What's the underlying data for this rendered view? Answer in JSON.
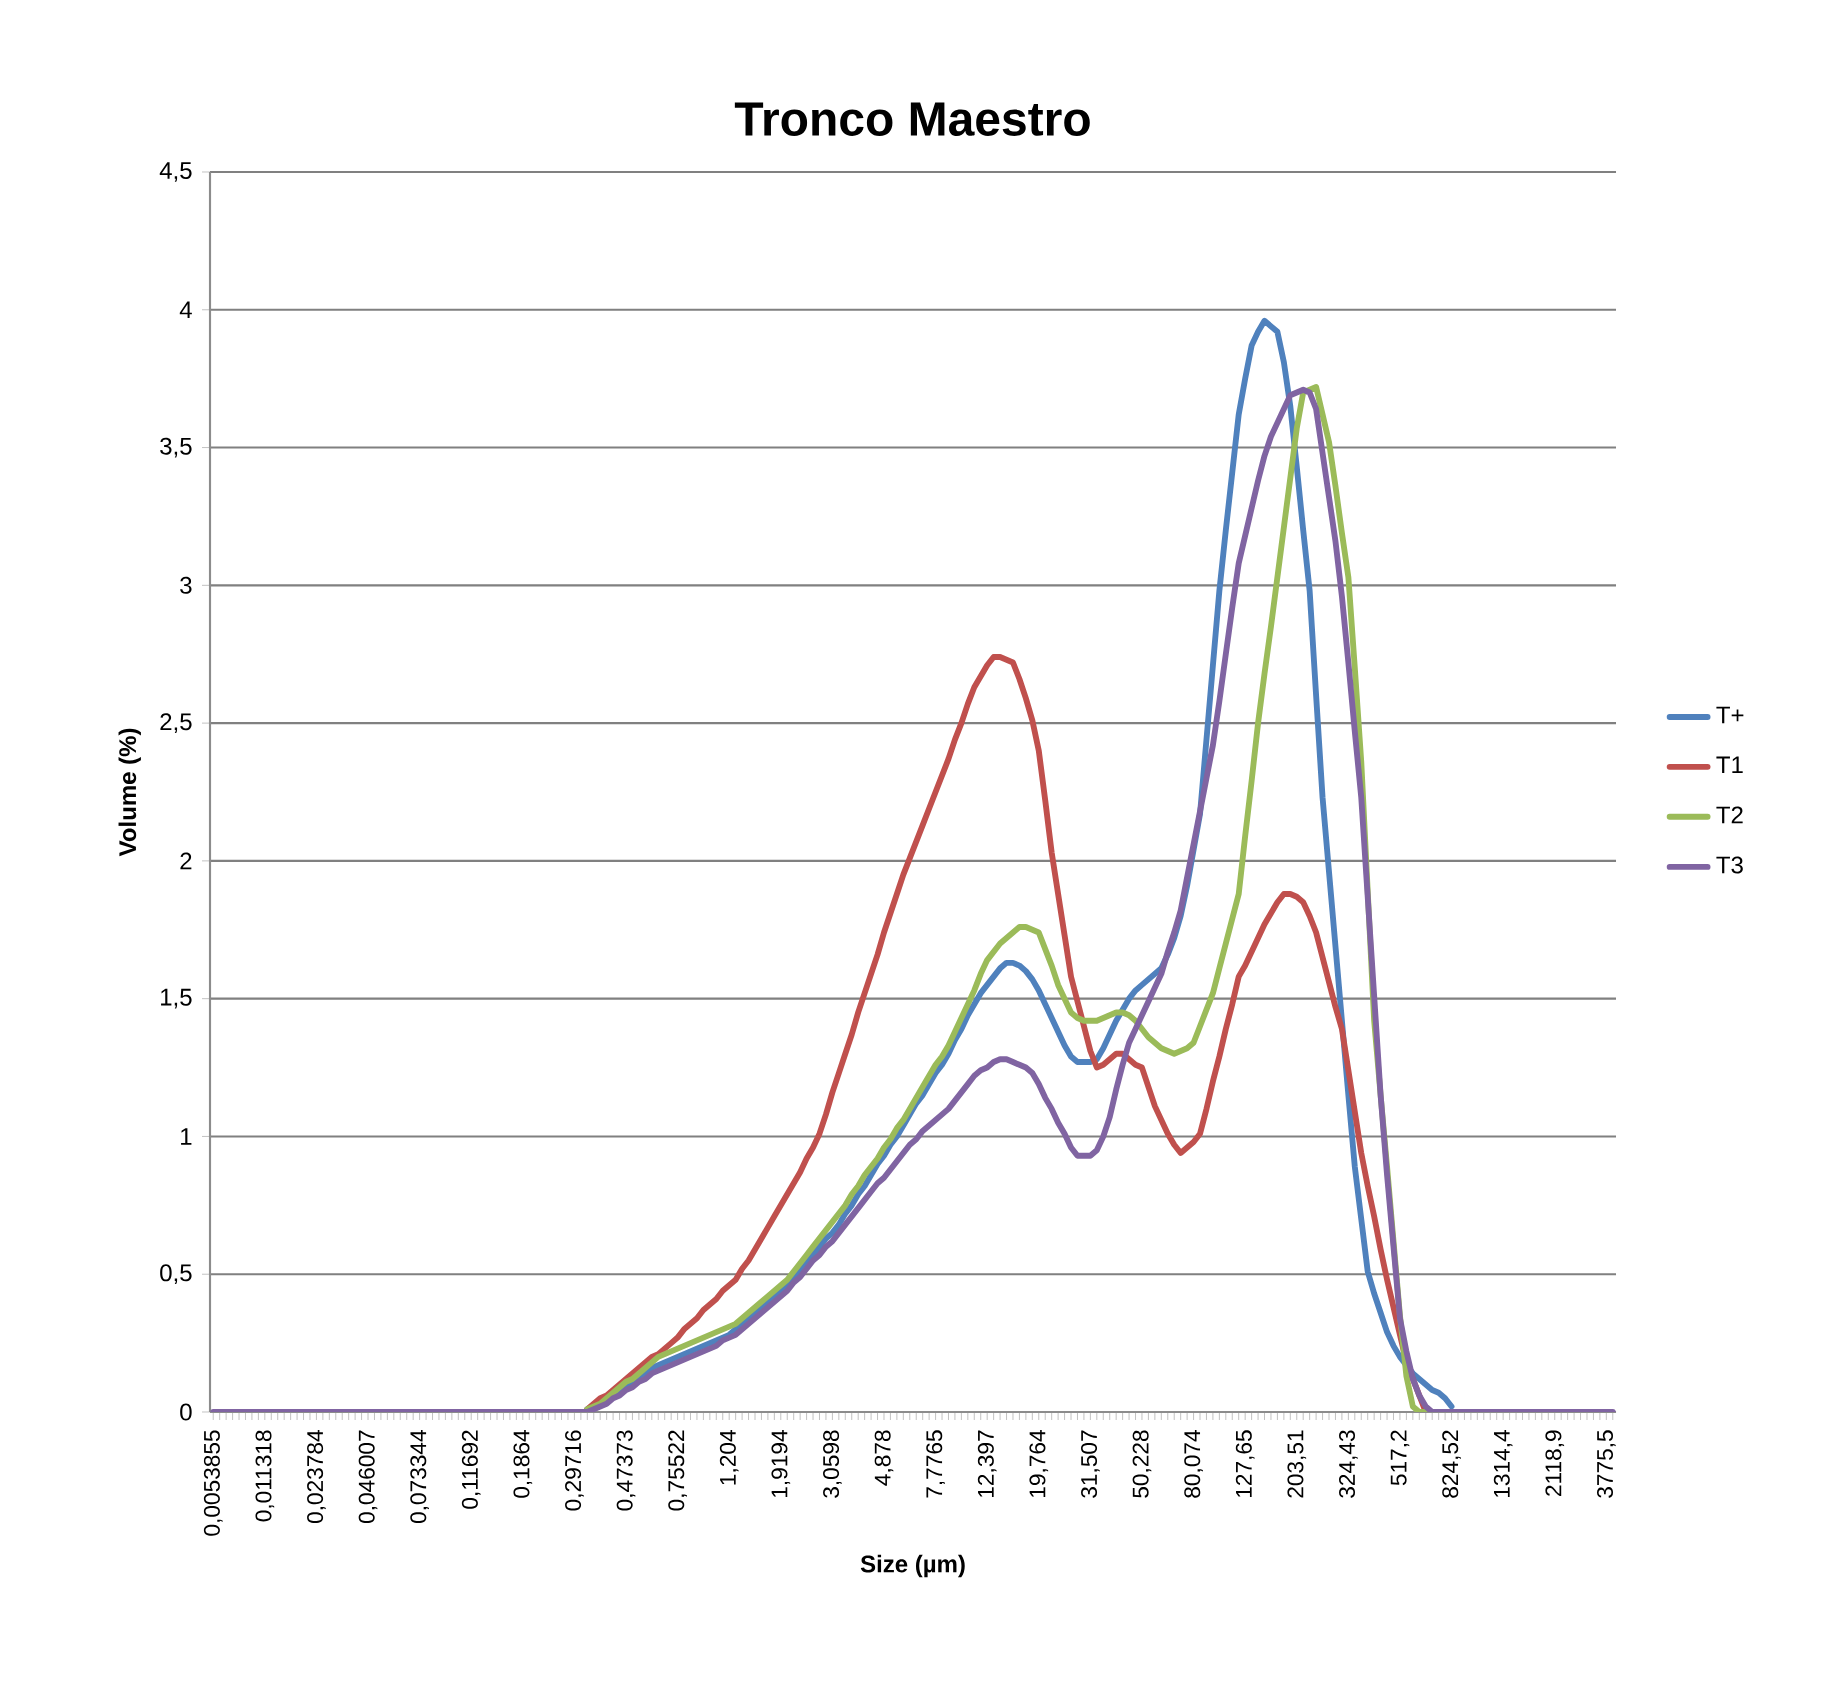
{
  "chart_data": {
    "type": "line",
    "title": "Tronco Maestro",
    "xlabel": "Size (µm)",
    "ylabel": "Volume (%)",
    "categories": [
      "0,0053855",
      null,
      null,
      null,
      null,
      null,
      null,
      null,
      "0,011318",
      null,
      null,
      null,
      null,
      null,
      null,
      null,
      "0,023784",
      null,
      null,
      null,
      null,
      null,
      null,
      null,
      "0,046007",
      null,
      null,
      null,
      null,
      null,
      null,
      null,
      "0,073344",
      null,
      null,
      null,
      null,
      null,
      null,
      null,
      "0,11692",
      null,
      null,
      null,
      null,
      null,
      null,
      null,
      "0,1864",
      null,
      null,
      null,
      null,
      null,
      null,
      null,
      "0,29716",
      null,
      null,
      null,
      null,
      null,
      null,
      null,
      "0,47373",
      null,
      null,
      null,
      null,
      null,
      null,
      null,
      "0,75522",
      null,
      null,
      null,
      null,
      null,
      null,
      null,
      "1,204",
      null,
      null,
      null,
      null,
      null,
      null,
      null,
      "1,9194",
      null,
      null,
      null,
      null,
      null,
      null,
      null,
      "3,0598",
      null,
      null,
      null,
      null,
      null,
      null,
      null,
      "4,878",
      null,
      null,
      null,
      null,
      null,
      null,
      null,
      "7,7765",
      null,
      null,
      null,
      null,
      null,
      null,
      null,
      "12,397",
      null,
      null,
      null,
      null,
      null,
      null,
      null,
      "19,764",
      null,
      null,
      null,
      null,
      null,
      null,
      null,
      "31,507",
      null,
      null,
      null,
      null,
      null,
      null,
      null,
      "50,228",
      null,
      null,
      null,
      null,
      null,
      null,
      null,
      "80,074",
      null,
      null,
      null,
      null,
      null,
      null,
      null,
      "127,65",
      null,
      null,
      null,
      null,
      null,
      null,
      null,
      "203,51",
      null,
      null,
      null,
      null,
      null,
      null,
      null,
      "324,43",
      null,
      null,
      null,
      null,
      null,
      null,
      null,
      "517,2",
      null,
      null,
      null,
      null,
      null,
      null,
      null,
      "824,52",
      null,
      null,
      null,
      null,
      null,
      null,
      null,
      "1314,4",
      null,
      null,
      null,
      null,
      null,
      null,
      null,
      "2118,9",
      null,
      null,
      null,
      null,
      null,
      null,
      null,
      "3775,5",
      null
    ],
    "series": [
      {
        "name": "T+",
        "color": "#4f81bd",
        "values": [
          null,
          null,
          null,
          null,
          null,
          null,
          null,
          null,
          null,
          null,
          null,
          null,
          null,
          null,
          null,
          null,
          null,
          null,
          null,
          null,
          null,
          null,
          null,
          null,
          null,
          null,
          null,
          null,
          null,
          null,
          null,
          null,
          null,
          null,
          null,
          null,
          null,
          null,
          null,
          null,
          null,
          null,
          null,
          null,
          null,
          null,
          null,
          null,
          null,
          null,
          null,
          null,
          null,
          null,
          null,
          null,
          null,
          null,
          0.01,
          0.02,
          0.03,
          0.04,
          0.06,
          0.08,
          0.09,
          0.11,
          0.13,
          0.14,
          0.16,
          0.17,
          0.18,
          0.19,
          0.2,
          0.21,
          0.22,
          0.23,
          0.24,
          0.25,
          0.26,
          0.27,
          0.28,
          0.3,
          0.32,
          0.34,
          0.36,
          0.38,
          0.4,
          0.42,
          0.44,
          0.46,
          0.49,
          0.52,
          0.55,
          0.57,
          0.6,
          0.63,
          0.65,
          0.68,
          0.72,
          0.75,
          0.79,
          0.82,
          0.86,
          0.9,
          0.93,
          0.97,
          1.0,
          1.04,
          1.08,
          1.12,
          1.15,
          1.19,
          1.23,
          1.26,
          1.3,
          1.35,
          1.39,
          1.44,
          1.48,
          1.52,
          1.55,
          1.58,
          1.61,
          1.63,
          1.63,
          1.62,
          1.6,
          1.57,
          1.53,
          1.48,
          1.43,
          1.38,
          1.33,
          1.29,
          1.27,
          1.27,
          1.27,
          1.28,
          1.32,
          1.37,
          1.42,
          1.46,
          1.5,
          1.53,
          1.55,
          1.57,
          1.59,
          1.61,
          1.66,
          1.72,
          1.8,
          1.91,
          2.04,
          2.17,
          2.44,
          2.71,
          2.98,
          3.2,
          3.41,
          3.62,
          3.75,
          3.87,
          3.92,
          3.96,
          3.94,
          3.92,
          3.81,
          3.65,
          3.43,
          3.2,
          2.98,
          2.6,
          2.23,
          1.96,
          1.69,
          1.42,
          1.15,
          0.89,
          0.7,
          0.51,
          0.43,
          0.36,
          0.29,
          0.24,
          0.2,
          0.17,
          0.14,
          0.12,
          0.1,
          0.08,
          0.07,
          0.05,
          0.02,
          null,
          null,
          null,
          null,
          null,
          null,
          null,
          null,
          null,
          null,
          null,
          null,
          null,
          null,
          null,
          null,
          null,
          null,
          null,
          null,
          null,
          null,
          null,
          null,
          null
        ]
      },
      {
        "name": "T1",
        "color": "#c0504d",
        "values": [
          null,
          null,
          null,
          null,
          null,
          null,
          null,
          null,
          null,
          null,
          null,
          null,
          null,
          null,
          null,
          null,
          null,
          null,
          null,
          null,
          null,
          null,
          null,
          null,
          null,
          null,
          null,
          null,
          null,
          null,
          null,
          null,
          null,
          null,
          null,
          null,
          null,
          null,
          null,
          null,
          null,
          null,
          null,
          null,
          null,
          null,
          null,
          null,
          null,
          null,
          null,
          null,
          null,
          null,
          null,
          null,
          null,
          null,
          0.01,
          0.03,
          0.05,
          0.06,
          0.08,
          0.1,
          0.12,
          0.14,
          0.16,
          0.18,
          0.2,
          0.21,
          0.23,
          0.25,
          0.27,
          0.3,
          0.32,
          0.34,
          0.37,
          0.39,
          0.41,
          0.44,
          0.46,
          0.48,
          0.52,
          0.55,
          0.59,
          0.63,
          0.67,
          0.71,
          0.75,
          0.79,
          0.83,
          0.87,
          0.92,
          0.96,
          1.01,
          1.08,
          1.16,
          1.23,
          1.3,
          1.37,
          1.45,
          1.52,
          1.59,
          1.66,
          1.74,
          1.81,
          1.88,
          1.95,
          2.01,
          2.07,
          2.13,
          2.19,
          2.25,
          2.31,
          2.37,
          2.44,
          2.5,
          2.57,
          2.63,
          2.67,
          2.71,
          2.74,
          2.74,
          2.73,
          2.72,
          2.66,
          2.59,
          2.51,
          2.4,
          2.22,
          2.03,
          1.88,
          1.73,
          1.58,
          1.49,
          1.4,
          1.31,
          1.25,
          1.26,
          1.28,
          1.3,
          1.3,
          1.28,
          1.26,
          1.25,
          1.18,
          1.11,
          1.06,
          1.01,
          0.97,
          0.94,
          0.96,
          0.98,
          1.01,
          1.1,
          1.2,
          1.29,
          1.39,
          1.48,
          1.58,
          1.62,
          1.67,
          1.72,
          1.77,
          1.81,
          1.85,
          1.88,
          1.88,
          1.87,
          1.85,
          1.8,
          1.74,
          1.65,
          1.56,
          1.47,
          1.39,
          1.24,
          1.09,
          0.94,
          0.82,
          0.71,
          0.59,
          0.48,
          0.38,
          0.28,
          0.18,
          0.12,
          0.06,
          0,
          null,
          null,
          null,
          null,
          null,
          null,
          null,
          null,
          null,
          null,
          null,
          null,
          null,
          null,
          null,
          null,
          null,
          null,
          null,
          null,
          null,
          null,
          null,
          null,
          null,
          null,
          null,
          null,
          null
        ]
      },
      {
        "name": "T2",
        "color": "#9bbb59",
        "values": [
          null,
          null,
          null,
          null,
          null,
          null,
          null,
          null,
          null,
          null,
          null,
          null,
          null,
          null,
          null,
          null,
          null,
          null,
          null,
          null,
          null,
          null,
          null,
          null,
          null,
          null,
          null,
          null,
          null,
          null,
          null,
          null,
          null,
          null,
          null,
          null,
          null,
          null,
          null,
          null,
          null,
          null,
          null,
          null,
          null,
          null,
          null,
          null,
          null,
          null,
          null,
          null,
          null,
          null,
          null,
          null,
          null,
          null,
          0.01,
          0.02,
          0.03,
          0.05,
          0.07,
          0.09,
          0.11,
          0.12,
          0.14,
          0.16,
          0.18,
          0.2,
          0.21,
          0.22,
          0.23,
          0.24,
          0.25,
          0.26,
          0.27,
          0.28,
          0.29,
          0.3,
          0.31,
          0.32,
          0.34,
          0.36,
          0.38,
          0.4,
          0.42,
          0.44,
          0.46,
          0.48,
          0.51,
          0.54,
          0.57,
          0.6,
          0.63,
          0.66,
          0.69,
          0.72,
          0.75,
          0.79,
          0.82,
          0.86,
          0.89,
          0.92,
          0.96,
          0.99,
          1.03,
          1.06,
          1.1,
          1.14,
          1.18,
          1.22,
          1.26,
          1.29,
          1.33,
          1.38,
          1.43,
          1.48,
          1.53,
          1.59,
          1.64,
          1.67,
          1.7,
          1.72,
          1.74,
          1.76,
          1.76,
          1.75,
          1.74,
          1.68,
          1.62,
          1.55,
          1.5,
          1.45,
          1.43,
          1.42,
          1.42,
          1.42,
          1.43,
          1.44,
          1.45,
          1.45,
          1.44,
          1.42,
          1.39,
          1.36,
          1.34,
          1.32,
          1.31,
          1.3,
          1.31,
          1.32,
          1.34,
          1.4,
          1.46,
          1.52,
          1.61,
          1.7,
          1.79,
          1.88,
          2.09,
          2.29,
          2.5,
          2.68,
          2.85,
          3.03,
          3.21,
          3.39,
          3.57,
          3.7,
          3.71,
          3.72,
          3.62,
          3.52,
          3.36,
          3.19,
          3.03,
          2.7,
          2.36,
          1.89,
          1.42,
          1.15,
          0.89,
          0.62,
          0.35,
          0.13,
          0.02,
          0,
          0,
          null,
          null,
          null,
          null,
          null,
          null,
          null,
          null,
          null,
          null,
          null,
          null,
          null,
          null,
          null,
          null,
          null,
          null,
          null,
          null,
          null,
          null,
          null,
          null,
          null,
          null,
          null,
          null,
          null
        ]
      },
      {
        "name": "T3",
        "color": "#8064a2",
        "values": [
          0,
          0,
          0,
          0,
          0,
          0,
          0,
          0,
          0,
          0,
          0,
          0,
          0,
          0,
          0,
          0,
          0,
          0,
          0,
          0,
          0,
          0,
          0,
          0,
          0,
          0,
          0,
          0,
          0,
          0,
          0,
          0,
          0,
          0,
          0,
          0,
          0,
          0,
          0,
          0,
          0,
          0,
          0,
          0,
          0,
          0,
          0,
          0,
          0,
          0,
          0,
          0,
          0,
          0,
          0,
          0,
          0,
          0,
          0,
          0.01,
          0.02,
          0.03,
          0.05,
          0.06,
          0.08,
          0.09,
          0.11,
          0.12,
          0.14,
          0.15,
          0.16,
          0.17,
          0.18,
          0.19,
          0.2,
          0.21,
          0.22,
          0.23,
          0.24,
          0.26,
          0.27,
          0.28,
          0.3,
          0.32,
          0.34,
          0.36,
          0.38,
          0.4,
          0.42,
          0.44,
          0.47,
          0.49,
          0.52,
          0.55,
          0.57,
          0.6,
          0.62,
          0.65,
          0.68,
          0.71,
          0.74,
          0.77,
          0.8,
          0.83,
          0.85,
          0.88,
          0.91,
          0.94,
          0.97,
          0.99,
          1.02,
          1.04,
          1.06,
          1.08,
          1.1,
          1.13,
          1.16,
          1.19,
          1.22,
          1.24,
          1.25,
          1.27,
          1.28,
          1.28,
          1.27,
          1.26,
          1.25,
          1.23,
          1.19,
          1.14,
          1.1,
          1.05,
          1.01,
          0.96,
          0.93,
          0.93,
          0.93,
          0.95,
          1.0,
          1.07,
          1.17,
          1.26,
          1.34,
          1.39,
          1.44,
          1.49,
          1.54,
          1.59,
          1.67,
          1.74,
          1.82,
          1.94,
          2.06,
          2.18,
          2.3,
          2.42,
          2.58,
          2.75,
          2.92,
          3.08,
          3.18,
          3.28,
          3.38,
          3.47,
          3.54,
          3.59,
          3.64,
          3.69,
          3.7,
          3.71,
          3.7,
          3.64,
          3.48,
          3.32,
          3.16,
          2.96,
          2.72,
          2.47,
          2.23,
          1.87,
          1.51,
          1.15,
          0.86,
          0.6,
          0.34,
          0.22,
          0.12,
          0.06,
          0.02,
          0,
          0,
          0,
          0,
          0,
          0,
          0,
          0,
          0,
          0,
          0,
          0,
          0,
          0,
          0,
          0,
          0,
          0,
          0,
          0,
          0,
          0,
          0,
          0,
          0,
          0,
          0,
          0,
          0
        ]
      }
    ],
    "ylim": [
      0,
      4.5
    ],
    "yticks": [
      0,
      {
        "value": 0.5,
        "label": "0,5"
      },
      1,
      {
        "value": 1.5,
        "label": "1,5"
      },
      2,
      {
        "value": 2.5,
        "label": "2,5"
      },
      3,
      {
        "value": 3.5,
        "label": "3,5"
      },
      4,
      {
        "value": 4.5,
        "label": "4,5"
      }
    ],
    "grid": "y",
    "legend": "right"
  }
}
